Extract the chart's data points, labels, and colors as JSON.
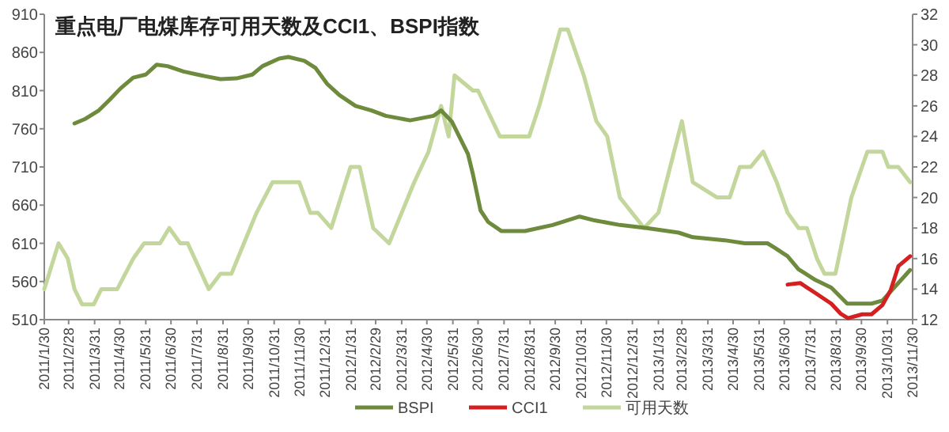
{
  "chart_data": {
    "type": "line",
    "title": "重点电厂电煤库存可用天数及CCI1、BSPI指数",
    "xlim": [
      "2011-01-30",
      "2013-11-30"
    ],
    "xticks": [
      {
        "value": "2011-01-30",
        "label": "2011/1/30"
      },
      {
        "value": "2011-02-28",
        "label": "2011/2/28"
      },
      {
        "value": "2011-03-31",
        "label": "2011/3/31"
      },
      {
        "value": "2011-04-30",
        "label": "2011/4/30"
      },
      {
        "value": "2011-05-31",
        "label": "2011/5/31"
      },
      {
        "value": "2011-06-30",
        "label": "2011/6/30"
      },
      {
        "value": "2011-07-31",
        "label": "2011/7/31"
      },
      {
        "value": "2011-08-31",
        "label": "2011/8/31"
      },
      {
        "value": "2011-09-30",
        "label": "2011/9/30"
      },
      {
        "value": "2011-10-31",
        "label": "2011/10/31"
      },
      {
        "value": "2011-11-30",
        "label": "2011/11/30"
      },
      {
        "value": "2011-12-31",
        "label": "2011/12/31"
      },
      {
        "value": "2012-01-31",
        "label": "2012/1/31"
      },
      {
        "value": "2012-02-29",
        "label": "2012/2/29"
      },
      {
        "value": "2012-03-31",
        "label": "2012/3/31"
      },
      {
        "value": "2012-04-30",
        "label": "2012/4/30"
      },
      {
        "value": "2012-05-31",
        "label": "2012/5/31"
      },
      {
        "value": "2012-06-30",
        "label": "2012/6/30"
      },
      {
        "value": "2012-07-31",
        "label": "2012/7/31"
      },
      {
        "value": "2012-08-31",
        "label": "2012/8/31"
      },
      {
        "value": "2012-09-30",
        "label": "2012/9/30"
      },
      {
        "value": "2012-10-31",
        "label": "2012/10/31"
      },
      {
        "value": "2012-11-30",
        "label": "2012/11/30"
      },
      {
        "value": "2012-12-31",
        "label": "2012/12/31"
      },
      {
        "value": "2013-01-31",
        "label": "2013/1/31"
      },
      {
        "value": "2013-02-28",
        "label": "2013/2/28"
      },
      {
        "value": "2013-03-31",
        "label": "2013/3/31"
      },
      {
        "value": "2013-04-30",
        "label": "2013/4/30"
      },
      {
        "value": "2013-05-31",
        "label": "2013/5/31"
      },
      {
        "value": "2013-06-30",
        "label": "2013/6/30"
      },
      {
        "value": "2013-07-31",
        "label": "2013/7/31"
      },
      {
        "value": "2013-08-31",
        "label": "2013/8/31"
      },
      {
        "value": "2013-09-30",
        "label": "2013/9/30"
      },
      {
        "value": "2013-10-31",
        "label": "2013/10/31"
      },
      {
        "value": "2013-11-30",
        "label": "2013/11/30"
      }
    ],
    "ylim": [
      510,
      910
    ],
    "yticks": [
      510,
      560,
      610,
      660,
      710,
      760,
      810,
      860,
      910
    ],
    "y2lim": [
      12,
      32
    ],
    "y2ticks": [
      12,
      14,
      16,
      18,
      20,
      22,
      24,
      26,
      28,
      30,
      32
    ],
    "grid": false,
    "legend": "bottom",
    "marker": "none",
    "line_style": "solid",
    "series": [
      {
        "name": "BSPI",
        "color": "#6e8b3d",
        "x": [
          "2011-03-07",
          "2011-03-20",
          "2011-04-05",
          "2011-04-18",
          "2011-05-01",
          "2011-05-16",
          "2011-05-31",
          "2011-06-13",
          "2011-06-26",
          "2011-07-15",
          "2011-08-09",
          "2011-08-28",
          "2011-09-16",
          "2011-10-05",
          "2011-10-17",
          "2011-11-06",
          "2011-11-17",
          "2011-12-06",
          "2011-12-19",
          "2012-01-02",
          "2012-01-17",
          "2012-02-05",
          "2012-02-24",
          "2012-03-12",
          "2012-04-10",
          "2012-05-08",
          "2012-05-17",
          "2012-05-30",
          "2012-06-18",
          "2012-06-24",
          "2012-07-03",
          "2012-07-12",
          "2012-07-28",
          "2012-08-25",
          "2012-09-27",
          "2012-10-29",
          "2012-11-16",
          "2012-12-16",
          "2013-01-17",
          "2013-02-24",
          "2013-03-13",
          "2013-04-20",
          "2013-05-14",
          "2013-06-10",
          "2013-06-19",
          "2013-07-04",
          "2013-07-17",
          "2013-08-06",
          "2013-08-25",
          "2013-09-13",
          "2013-10-12",
          "2013-10-25",
          "2013-11-08",
          "2013-11-27"
        ],
        "values": [
          767,
          773,
          784,
          798,
          813,
          827,
          831,
          844,
          842,
          835,
          829,
          825,
          826,
          831,
          842,
          852,
          854,
          849,
          840,
          819,
          804,
          790,
          784,
          777,
          771,
          777,
          784,
          769,
          727,
          700,
          653,
          638,
          626,
          626,
          634,
          645,
          640,
          634,
          630,
          624,
          618,
          614,
          610,
          610,
          604,
          593,
          576,
          562,
          552,
          531,
          531,
          535,
          552,
          575
        ]
      },
      {
        "name": "CCI1",
        "color": "#d42020",
        "x": [
          "2013-07-04",
          "2013-07-19",
          "2013-08-06",
          "2013-08-25",
          "2013-09-05",
          "2013-09-14",
          "2013-10-01",
          "2013-10-12",
          "2013-10-25",
          "2013-11-04",
          "2013-11-13",
          "2013-11-27"
        ],
        "values": [
          556,
          558,
          545,
          531,
          518,
          512,
          517,
          517,
          529,
          549,
          580,
          593
        ]
      },
      {
        "name": "可用天数",
        "color": "#c3d69b",
        "axis": "y2",
        "x": [
          "2011-01-30",
          "2011-02-16",
          "2011-02-27",
          "2011-03-07",
          "2011-03-16",
          "2011-03-30",
          "2011-04-08",
          "2011-04-27",
          "2011-05-16",
          "2011-05-29",
          "2011-06-17",
          "2011-06-28",
          "2011-07-11",
          "2011-07-20",
          "2011-08-14",
          "2011-08-28",
          "2011-09-10",
          "2011-09-25",
          "2011-10-10",
          "2011-10-29",
          "2011-11-30",
          "2011-12-13",
          "2011-12-22",
          "2012-01-07",
          "2012-01-30",
          "2012-02-10",
          "2012-02-26",
          "2012-03-16",
          "2012-03-31",
          "2012-04-15",
          "2012-05-02",
          "2012-05-17",
          "2012-05-26",
          "2012-06-02",
          "2012-06-24",
          "2012-06-30",
          "2012-07-26",
          "2012-08-30",
          "2012-09-11",
          "2012-10-06",
          "2012-10-15",
          "2012-11-03",
          "2012-11-18",
          "2012-12-01",
          "2012-12-16",
          "2013-01-14",
          "2013-01-31",
          "2013-02-28",
          "2013-03-13",
          "2013-04-11",
          "2013-04-26",
          "2013-05-08",
          "2013-05-21",
          "2013-06-05",
          "2013-06-21",
          "2013-07-04",
          "2013-07-17",
          "2013-07-27",
          "2013-08-08",
          "2013-08-17",
          "2013-08-30",
          "2013-09-18",
          "2013-10-07",
          "2013-10-25",
          "2013-11-01",
          "2013-11-13",
          "2013-11-27"
        ],
        "values": [
          14,
          17,
          16,
          14,
          13,
          13,
          14,
          14,
          16,
          17,
          17,
          18,
          17,
          17,
          14,
          15,
          15,
          17,
          19,
          21,
          21,
          19,
          19,
          18,
          22,
          22,
          18,
          17,
          19,
          21,
          23,
          26,
          24,
          28,
          27,
          27,
          24,
          24,
          26,
          31,
          31,
          28,
          25,
          24,
          20,
          18,
          19,
          25,
          21,
          20,
          20,
          22,
          22,
          23,
          21,
          19,
          18,
          18,
          16,
          15,
          15,
          20,
          23,
          23,
          22,
          22,
          21
        ]
      }
    ]
  }
}
